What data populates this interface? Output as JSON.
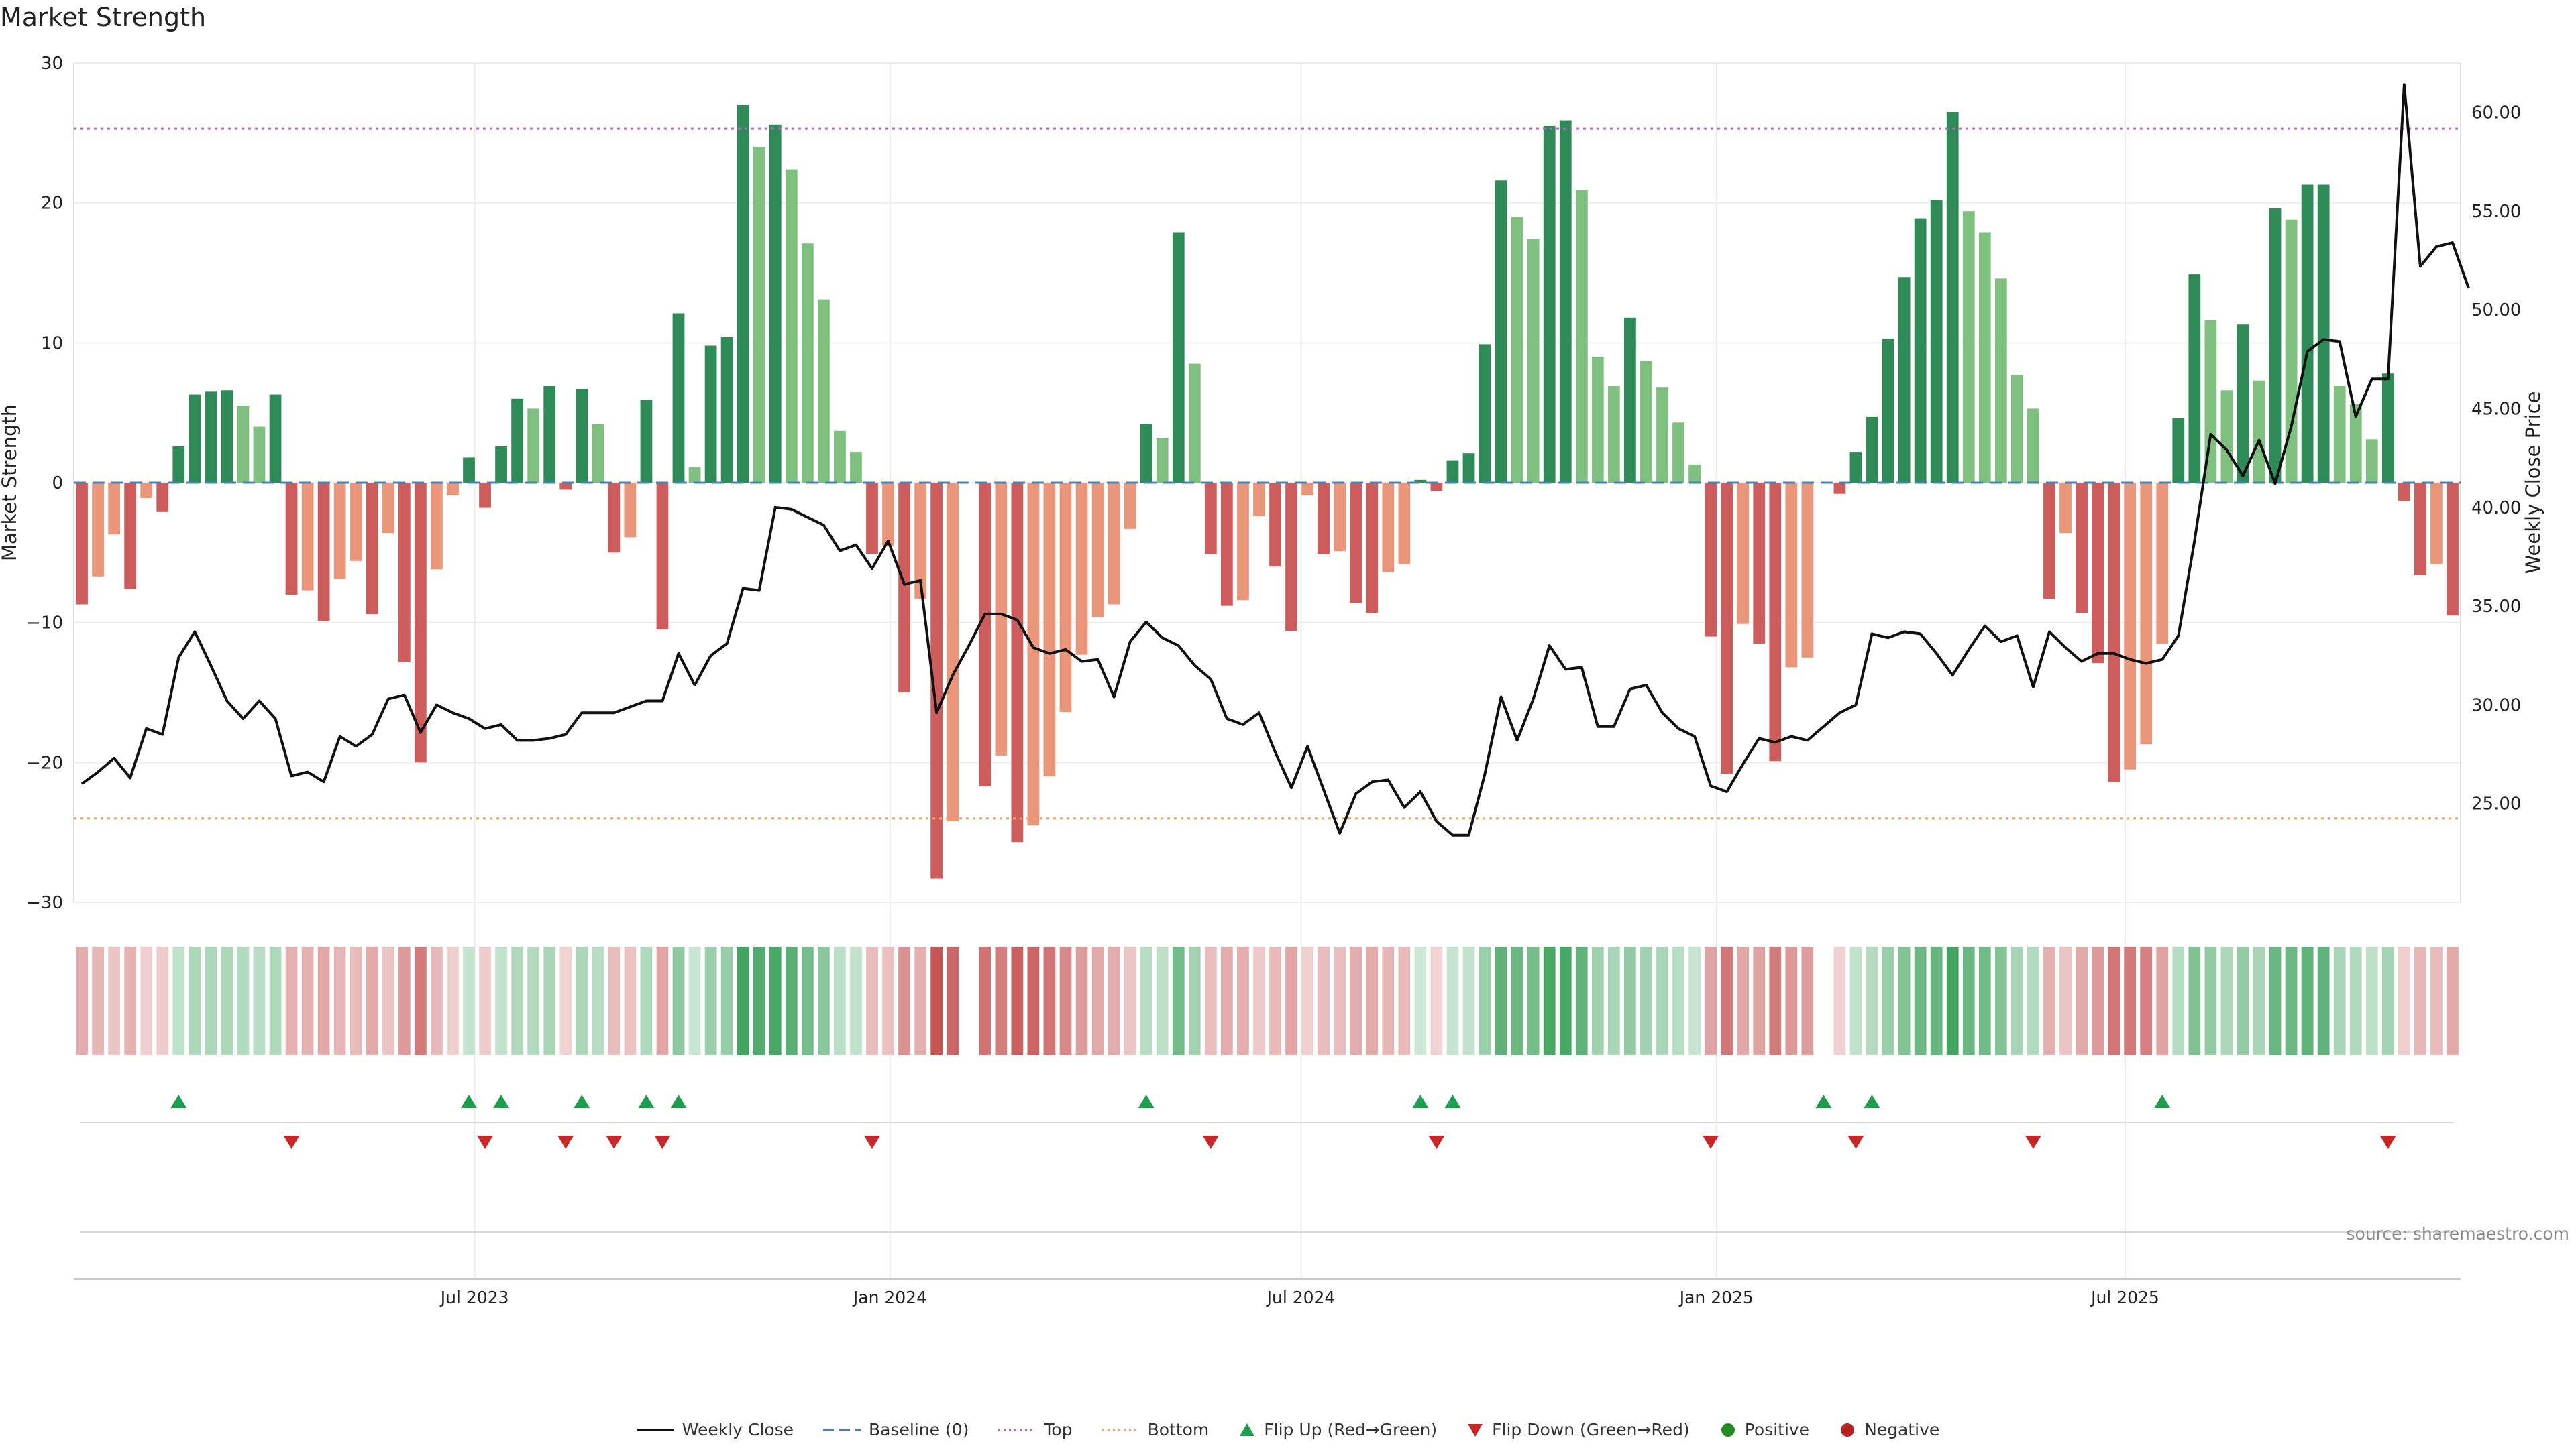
{
  "title": "Market Strength",
  "source": "source: sharemaestro.com",
  "colors": {
    "strong_green": "#2e8b57",
    "light_green": "#7fbf7f",
    "strong_red": "#cd5c5c",
    "light_red": "#e9967a",
    "price_line": "#111111",
    "baseline": "#4682b4",
    "top": "#b266c8",
    "bottom": "#f4a460",
    "flip_up": "#1f9d4e",
    "flip_down": "#c62828",
    "positive": "#228b22",
    "negative": "#b22222"
  },
  "legend": [
    {
      "key": "weekly_close",
      "label": "Weekly Close",
      "icon": "line-solid"
    },
    {
      "key": "baseline",
      "label": "Baseline (0)",
      "icon": "line-dashed"
    },
    {
      "key": "top",
      "label": "Top",
      "icon": "line-dotted"
    },
    {
      "key": "bottom",
      "label": "Bottom",
      "icon": "line-dotted"
    },
    {
      "key": "flip_up",
      "label": "Flip Up (Red→Green)",
      "icon": "triangle-up"
    },
    {
      "key": "flip_down",
      "label": "Flip Down (Green→Red)",
      "icon": "triangle-down"
    },
    {
      "key": "positive",
      "label": "Positive",
      "icon": "dot"
    },
    {
      "key": "negative",
      "label": "Negative",
      "icon": "dot"
    }
  ],
  "chart_data": {
    "type": "bar",
    "title": "Market Strength",
    "ylabel": "Market Strength",
    "ylabel_right": "Weekly Close Price",
    "ylim": [
      -30,
      30
    ],
    "ylim_right": [
      20,
      62.5
    ],
    "yticks": [
      30,
      20,
      10,
      0,
      -10,
      -20,
      -30
    ],
    "yticks_labels": [
      "30",
      "20",
      "10",
      "0",
      "−10",
      "−20",
      "−30"
    ],
    "yticks_right": [
      25,
      30,
      35,
      40,
      45,
      50,
      55,
      60
    ],
    "yticks_right_labels": [
      "25.00",
      "30.00",
      "35.00",
      "40.00",
      "45.00",
      "50.00",
      "55.00",
      "60.00"
    ],
    "top_level": 25.3,
    "bottom_level": -24.0,
    "x_start": "2023-01-08",
    "x_end": "2025-11-23",
    "xtick_dates": [
      "2023-07-01",
      "2024-01-01",
      "2024-07-01",
      "2025-01-01",
      "2025-07-01"
    ],
    "xtick_labels": [
      "Jul 2023",
      "Jan 2024",
      "Jul 2024",
      "Jan 2025",
      "Jul 2025"
    ],
    "strength": [
      -8.7,
      -6.7,
      -3.7,
      -7.6,
      -1.1,
      -2.1,
      2.6,
      6.3,
      6.5,
      6.6,
      5.5,
      4.0,
      6.3,
      -8.0,
      -7.7,
      -9.9,
      -6.9,
      -5.6,
      -9.4,
      -3.6,
      -12.8,
      -20.0,
      -6.2,
      -0.9,
      1.8,
      -1.8,
      2.6,
      6.0,
      5.3,
      6.9,
      -0.5,
      6.7,
      4.2,
      -5.0,
      -3.9,
      5.9,
      -10.5,
      12.1,
      1.1,
      9.8,
      10.4,
      27.0,
      24.0,
      25.6,
      22.4,
      17.1,
      13.1,
      3.7,
      2.2,
      -5.1,
      -4.5,
      -15.0,
      -8.3,
      -28.3,
      -24.2,
      0.0,
      -21.7,
      -19.5,
      -25.7,
      -24.5,
      -21.0,
      -16.4,
      -12.3,
      -9.6,
      -8.7,
      -3.3,
      4.2,
      3.2,
      17.9,
      8.5,
      -5.1,
      -8.8,
      -8.4,
      -2.4,
      -6.0,
      -10.6,
      -0.9,
      -5.1,
      -4.9,
      -8.6,
      -9.3,
      -6.4,
      -5.8,
      0.2,
      -0.6,
      1.6,
      2.1,
      9.9,
      21.6,
      19.0,
      17.4,
      25.5,
      25.9,
      20.9,
      9.0,
      6.9,
      11.8,
      8.7,
      6.8,
      4.3,
      1.3,
      -11.0,
      -20.8,
      -10.1,
      -11.5,
      -19.9,
      -13.2,
      -12.5,
      0.0,
      -0.8,
      2.2,
      4.7,
      10.3,
      14.7,
      18.9,
      20.2,
      26.5,
      19.4,
      17.9,
      14.6,
      7.7,
      5.3,
      -8.3,
      -3.6,
      -9.3,
      -12.9,
      -21.4,
      -20.5,
      -18.7,
      -11.5,
      4.6,
      14.9,
      11.6,
      6.6,
      11.3,
      7.3,
      19.6,
      18.8,
      21.3,
      21.3,
      6.9,
      5.6,
      3.1,
      7.8,
      -1.3,
      -6.6,
      -5.8,
      -9.5
    ],
    "price": [
      26.0,
      26.6,
      27.3,
      26.3,
      28.8,
      28.5,
      32.4,
      33.7,
      32.0,
      30.2,
      29.3,
      30.2,
      29.3,
      26.4,
      26.6,
      26.1,
      28.4,
      27.9,
      28.5,
      30.3,
      30.5,
      28.6,
      30.0,
      29.6,
      29.3,
      28.8,
      29.0,
      28.2,
      28.2,
      28.3,
      28.5,
      29.6,
      29.6,
      29.6,
      29.9,
      30.2,
      30.2,
      32.6,
      31.0,
      32.5,
      33.1,
      35.9,
      35.8,
      40.0,
      39.9,
      39.5,
      39.1,
      37.8,
      38.1,
      36.9,
      38.3,
      36.1,
      36.3,
      29.6,
      31.5,
      33.0,
      34.6,
      34.6,
      34.3,
      32.9,
      32.6,
      32.8,
      32.2,
      32.3,
      30.4,
      33.2,
      34.2,
      33.4,
      33.0,
      32.0,
      31.3,
      29.3,
      29.0,
      29.6,
      27.6,
      25.8,
      27.9,
      25.7,
      23.5,
      25.5,
      26.1,
      26.2,
      24.8,
      25.6,
      24.1,
      23.4,
      23.4,
      26.5,
      30.4,
      28.2,
      30.3,
      33.0,
      31.8,
      31.9,
      28.9,
      28.9,
      30.8,
      31.0,
      29.6,
      28.8,
      28.4,
      25.9,
      25.6,
      27.0,
      28.3,
      28.1,
      28.4,
      28.2,
      28.9,
      29.6,
      30.0,
      33.6,
      33.4,
      33.7,
      33.6,
      32.6,
      31.5,
      32.8,
      34.0,
      33.2,
      33.5,
      30.9,
      33.7,
      32.9,
      32.2,
      32.6,
      32.6,
      32.3,
      32.1,
      32.3,
      33.5,
      38.3,
      43.7,
      42.9,
      41.6,
      43.4,
      41.2,
      44.1,
      47.9,
      48.5,
      48.4,
      44.6,
      46.5,
      46.5,
      61.4,
      52.2,
      53.2,
      53.4,
      51.1
    ],
    "flip_up_index": [
      6,
      24,
      26,
      31,
      35,
      37,
      66,
      83,
      85,
      108,
      111,
      129
    ],
    "flip_down_index": [
      13,
      25,
      30,
      33,
      36,
      49,
      70,
      84,
      101,
      110,
      121,
      143
    ]
  }
}
